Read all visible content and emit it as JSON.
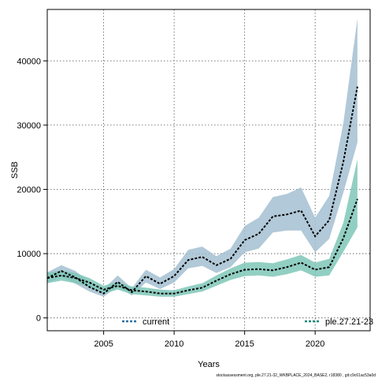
{
  "chart_data": {
    "type": "line",
    "xlabel": "Years",
    "ylabel": "SSB",
    "xlim": [
      2001,
      2023.9
    ],
    "ylim": [
      -2000,
      48000
    ],
    "x_ticks": [
      2005,
      2010,
      2015,
      2020
    ],
    "y_ticks": [
      0,
      10000,
      20000,
      30000,
      40000
    ],
    "grid": true,
    "legend_position": "bottom",
    "footer": "stockassessment.org, ple.27.21-32_WKBPLACE_2024_BASE2, r18380 , git:c9c61ac53a0d",
    "x": [
      2001,
      2002,
      2003,
      2004,
      2005,
      2006,
      2007,
      2008,
      2009,
      2010,
      2011,
      2012,
      2013,
      2014,
      2015,
      2016,
      2017,
      2018,
      2019,
      2020,
      2021,
      2022,
      2023
    ],
    "series": [
      {
        "name": "current",
        "color": "#2b6f9c",
        "fill": "#a3bfd1",
        "values": [
          6200,
          7300,
          6300,
          4800,
          3800,
          5600,
          4000,
          6500,
          5300,
          6500,
          9000,
          9500,
          8200,
          9200,
          12100,
          13100,
          15800,
          16100,
          16700,
          12700,
          15200,
          24300,
          36000
        ],
        "lower": [
          5400,
          6400,
          5300,
          4100,
          3300,
          4800,
          3500,
          5500,
          4500,
          5500,
          7700,
          8100,
          7000,
          7900,
          10200,
          10800,
          13300,
          13600,
          13600,
          10200,
          12300,
          19500,
          27300
        ],
        "upper": [
          7100,
          8200,
          7300,
          5600,
          4500,
          6600,
          4600,
          7500,
          6300,
          7600,
          10600,
          11100,
          9600,
          10800,
          14300,
          15600,
          18800,
          19300,
          20300,
          15600,
          19000,
          30300,
          46600
        ]
      },
      {
        "name": "ple.27.21-23",
        "color": "#1b8a7a",
        "fill": "#7fc7b8",
        "values": [
          6200,
          6600,
          6200,
          5500,
          4400,
          5000,
          4300,
          4100,
          3800,
          3800,
          4300,
          4700,
          5800,
          6800,
          7500,
          7600,
          7400,
          7900,
          8600,
          7500,
          7900,
          12400,
          18500
        ],
        "lower": [
          5400,
          5800,
          5400,
          4800,
          3800,
          4400,
          3700,
          3500,
          3300,
          3300,
          3700,
          4100,
          5000,
          5900,
          6500,
          6600,
          6400,
          6800,
          7400,
          6400,
          6600,
          10300,
          14100
        ],
        "upper": [
          7000,
          7400,
          7000,
          6200,
          5000,
          5600,
          4900,
          4700,
          4400,
          4300,
          4900,
          5400,
          6600,
          7700,
          8600,
          8700,
          8500,
          9100,
          9800,
          8600,
          9200,
          14800,
          24700
        ]
      }
    ]
  }
}
